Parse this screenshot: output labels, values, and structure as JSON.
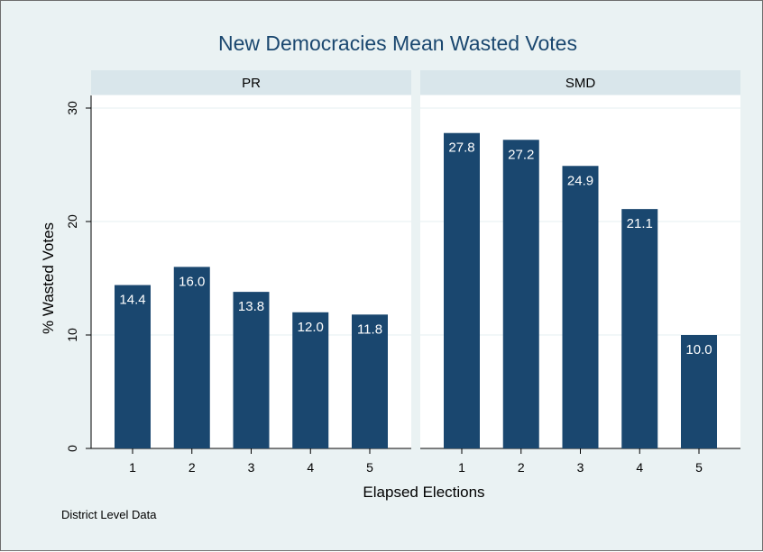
{
  "chart_data": {
    "type": "bar",
    "title": "New Democracies Mean Wasted Votes",
    "xlabel": "Elapsed Elections",
    "ylabel": "% Wasted Votes",
    "note": "District Level Data",
    "ylim": [
      0,
      30
    ],
    "yticks": [
      "0",
      "10",
      "20",
      "30"
    ],
    "grid": true,
    "panels": [
      {
        "label": "PR",
        "categories": [
          "1",
          "2",
          "3",
          "4",
          "5"
        ],
        "values": [
          14.4,
          16.0,
          13.8,
          12.0,
          11.8
        ],
        "value_labels": [
          "14.4",
          "16.0",
          "13.8",
          "12.0",
          "11.8"
        ]
      },
      {
        "label": "SMD",
        "categories": [
          "1",
          "2",
          "3",
          "4",
          "5"
        ],
        "values": [
          27.8,
          27.2,
          24.9,
          21.1,
          10.0
        ],
        "value_labels": [
          "27.8",
          "27.2",
          "24.9",
          "21.1",
          "10.0"
        ]
      }
    ],
    "colors": {
      "bar": "#1a476f",
      "figure_bg": "#eaf2f3",
      "plot_bg": "#ffffff",
      "strip_bg": "#d9e6eb",
      "grid": "#eaf2f3",
      "title": "#1a476f"
    }
  }
}
